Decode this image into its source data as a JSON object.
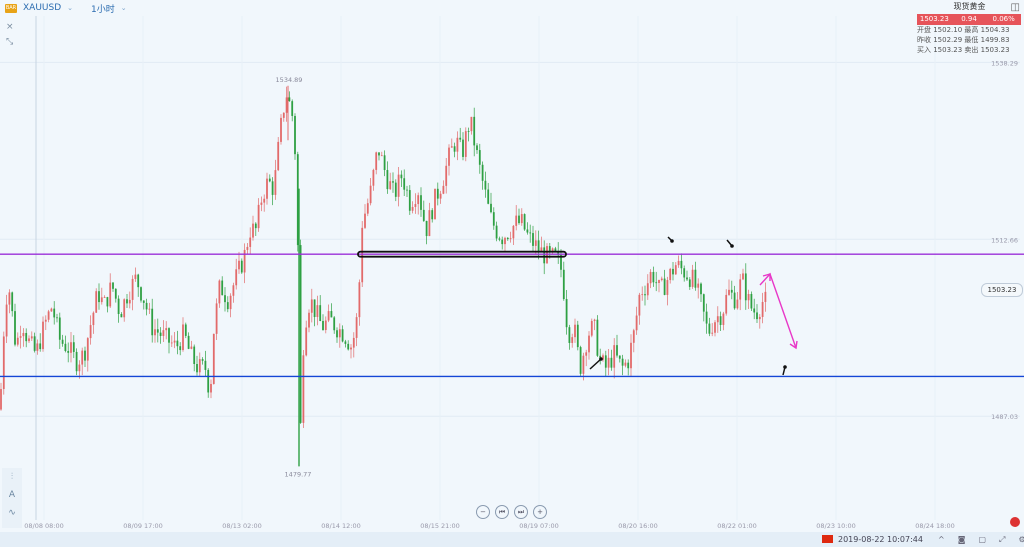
{
  "header": {
    "symbol": "XAUUSD",
    "timeframe": "1小时",
    "logo_text": "BAR"
  },
  "quote_panel": {
    "title": "现货黄金",
    "price": "1503.23",
    "change": "0.94",
    "change_pct": "0.06%",
    "row1": "开盘  1502.10  最高  1504.33",
    "row2": "昨收  1502.29  最低  1499.83",
    "row3": "买入  1503.23  卖出  1503.23"
  },
  "price_tag": "1503.23",
  "status_bar": {
    "datetime": "2019-08-22 10:07:44"
  },
  "colors": {
    "up": "#e26a6a",
    "down": "#2ea043",
    "purple_line": "#9b30d9",
    "blue_line": "#1446d6",
    "magenta_arrow": "#e838c8",
    "background": "#f1f7fc"
  },
  "chart_data": {
    "type": "candlestick",
    "symbol": "XAUUSD",
    "interval": "1h",
    "x_tick_labels": [
      "08/08 08:00",
      "08/09 17:00",
      "08/13 02:00",
      "08/14 12:00",
      "08/15 21:00",
      "08/19 07:00",
      "08/20 16:00",
      "08/22 01:00",
      "08/23 10:00",
      "08/24 18:00"
    ],
    "y_tick_labels": [
      "1538.29",
      "1512.66",
      "1487.03"
    ],
    "ylim": [
      1472,
      1545
    ],
    "annotations": {
      "high_label": "1534.89",
      "low_label": "1479.77"
    },
    "horizontal_lines": [
      {
        "price": 1510.5,
        "color": "#9b30d9"
      },
      {
        "price": 1492.8,
        "color": "#1446d6"
      }
    ],
    "close_path": [
      [
        0,
        1488
      ],
      [
        4,
        1500
      ],
      [
        8,
        1507
      ],
      [
        12,
        1502
      ],
      [
        16,
        1497
      ],
      [
        22,
        1501
      ],
      [
        28,
        1498
      ],
      [
        36,
        1496
      ],
      [
        44,
        1500
      ],
      [
        52,
        1503
      ],
      [
        60,
        1498
      ],
      [
        68,
        1497
      ],
      [
        76,
        1495
      ],
      [
        84,
        1496
      ],
      [
        90,
        1500
      ],
      [
        98,
        1505
      ],
      [
        104,
        1503
      ],
      [
        112,
        1506
      ],
      [
        120,
        1502
      ],
      [
        128,
        1505
      ],
      [
        136,
        1507
      ],
      [
        144,
        1504
      ],
      [
        152,
        1500
      ],
      [
        160,
        1499
      ],
      [
        168,
        1498
      ],
      [
        176,
        1497
      ],
      [
        184,
        1499
      ],
      [
        190,
        1496
      ],
      [
        198,
        1494
      ],
      [
        206,
        1494
      ],
      [
        210,
        1490
      ],
      [
        214,
        1500
      ],
      [
        220,
        1506
      ],
      [
        228,
        1504
      ],
      [
        236,
        1507
      ],
      [
        244,
        1510
      ],
      [
        250,
        1514
      ],
      [
        256,
        1514
      ],
      [
        262,
        1519
      ],
      [
        268,
        1521
      ],
      [
        274,
        1520
      ],
      [
        280,
        1528
      ],
      [
        286,
        1534
      ],
      [
        292,
        1531
      ],
      [
        297,
        1522
      ],
      [
        300,
        1483
      ],
      [
        304,
        1500
      ],
      [
        310,
        1504
      ],
      [
        316,
        1502
      ],
      [
        322,
        1500
      ],
      [
        330,
        1501
      ],
      [
        336,
        1500
      ],
      [
        344,
        1499
      ],
      [
        352,
        1497
      ],
      [
        358,
        1502
      ],
      [
        362,
        1515
      ],
      [
        370,
        1519
      ],
      [
        378,
        1526
      ],
      [
        386,
        1522
      ],
      [
        394,
        1519
      ],
      [
        402,
        1522
      ],
      [
        410,
        1518
      ],
      [
        418,
        1520
      ],
      [
        426,
        1514
      ],
      [
        434,
        1518
      ],
      [
        442,
        1521
      ],
      [
        450,
        1525
      ],
      [
        456,
        1527
      ],
      [
        462,
        1525
      ],
      [
        470,
        1530
      ],
      [
        478,
        1524
      ],
      [
        484,
        1520
      ],
      [
        490,
        1516
      ],
      [
        496,
        1514
      ],
      [
        502,
        1513
      ],
      [
        510,
        1514
      ],
      [
        516,
        1515
      ],
      [
        522,
        1515
      ],
      [
        528,
        1513
      ],
      [
        534,
        1512
      ],
      [
        540,
        1511
      ],
      [
        548,
        1510
      ],
      [
        556,
        1510
      ],
      [
        562,
        1508
      ],
      [
        568,
        1499
      ],
      [
        574,
        1500
      ],
      [
        580,
        1494
      ],
      [
        588,
        1499
      ],
      [
        594,
        1500
      ],
      [
        600,
        1495
      ],
      [
        606,
        1494
      ],
      [
        614,
        1496
      ],
      [
        622,
        1494
      ],
      [
        628,
        1495
      ],
      [
        634,
        1499
      ],
      [
        640,
        1505
      ],
      [
        646,
        1506
      ],
      [
        652,
        1508
      ],
      [
        660,
        1505
      ],
      [
        668,
        1507
      ],
      [
        676,
        1509
      ],
      [
        684,
        1508
      ],
      [
        692,
        1507
      ],
      [
        700,
        1504
      ],
      [
        708,
        1499
      ],
      [
        714,
        1501
      ],
      [
        722,
        1502
      ],
      [
        728,
        1505
      ],
      [
        736,
        1504
      ],
      [
        742,
        1507
      ],
      [
        750,
        1503
      ],
      [
        756,
        1502
      ],
      [
        764,
        1504
      ],
      [
        768,
        1503
      ]
    ]
  }
}
